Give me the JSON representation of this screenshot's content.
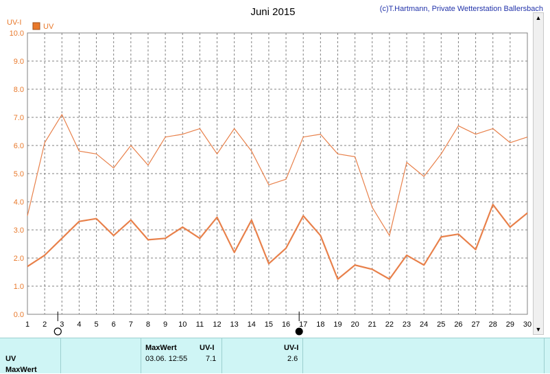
{
  "chart_data": {
    "type": "line",
    "title": "Juni 2015",
    "copyright": "(c)T.Hartmann, Private Wetterstation Ballersbach",
    "ylabel": "UV-I",
    "legend": "UV",
    "ylim": [
      0,
      10
    ],
    "yticks": [
      "0.0",
      "1.0",
      "2.0",
      "3.0",
      "4.0",
      "5.0",
      "6.0",
      "7.0",
      "8.0",
      "9.0",
      "10.0"
    ],
    "xlim": [
      1,
      30
    ],
    "x": [
      1,
      2,
      3,
      4,
      5,
      6,
      7,
      8,
      9,
      10,
      11,
      12,
      13,
      14,
      15,
      16,
      17,
      18,
      19,
      20,
      21,
      22,
      23,
      24,
      25,
      26,
      27,
      28,
      29,
      30
    ],
    "series": [
      {
        "values": [
          3.5,
          6.1,
          7.1,
          5.8,
          5.7,
          5.2,
          6.0,
          5.3,
          6.3,
          6.4,
          6.6,
          5.7,
          6.6,
          5.8,
          4.6,
          4.8,
          6.3,
          6.4,
          5.7,
          5.6,
          3.8,
          2.8,
          5.4,
          4.9,
          5.7,
          6.7,
          6.4,
          6.6,
          6.1,
          6.3
        ]
      },
      {
        "values": [
          1.7,
          2.1,
          2.7,
          3.3,
          3.4,
          2.8,
          3.35,
          2.65,
          2.7,
          3.1,
          2.7,
          3.45,
          2.2,
          3.35,
          1.8,
          2.35,
          3.5,
          2.8,
          1.25,
          1.75,
          1.6,
          1.25,
          2.1,
          1.75,
          2.75,
          2.85,
          2.3,
          3.9,
          3.1,
          3.6
        ]
      }
    ],
    "line_color": "#e8804a",
    "legend_color": "#e8782a",
    "markers": [
      {
        "x": 3,
        "type": "open-circle"
      },
      {
        "x": 17,
        "type": "filled-circle"
      }
    ],
    "grid": true
  },
  "panel": {
    "row_label": "UV",
    "row_label2": "MaxWert",
    "max_header": "MaxWert",
    "unit1": "UV-I",
    "max_time": "03.06.  12:55",
    "max_value": "7.1",
    "unit2": "UV-I",
    "current_value": "2.6"
  }
}
